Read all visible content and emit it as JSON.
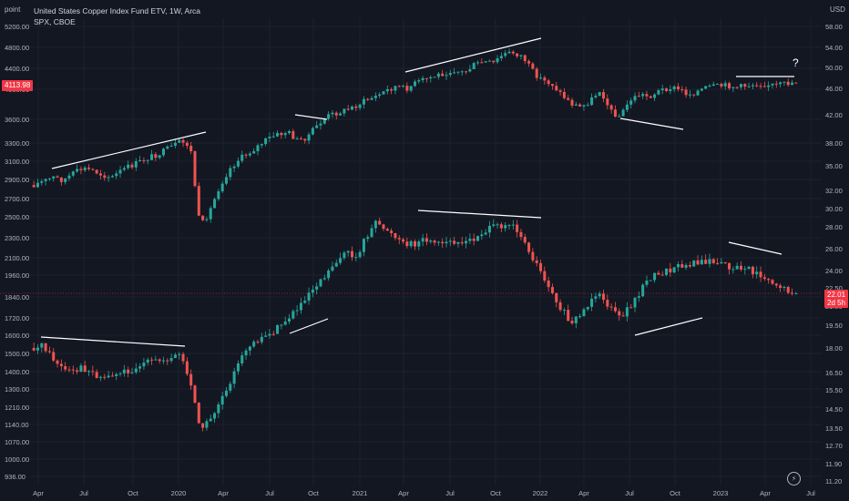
{
  "legend": {
    "line1": "United States Copper Index Fund ETV, 1W, Arca",
    "line2": "SPX, CBOE"
  },
  "axes": {
    "left_unit": "point",
    "right_unit": "USD"
  },
  "tags": {
    "spx_last": "4113.98",
    "cper_last": "22.01",
    "cper_countdown": "2d 5h"
  },
  "annotation": {
    "question_mark": "?"
  },
  "logo": {
    "glyph": "⚡"
  },
  "colors": {
    "background": "#131722",
    "grid": "#1e222d",
    "up": "#26a69a",
    "down": "#ef5350",
    "text": "#b2b5be",
    "price_line": "#f23645",
    "trend": "#ffffff"
  },
  "chart_data": {
    "type": "candlestick",
    "x_ticks": [
      "Apr",
      "Jul",
      "Oct",
      "2020",
      "Apr",
      "Jul",
      "Oct",
      "2021",
      "Apr",
      "Jul",
      "Oct",
      "2022",
      "Apr",
      "Jul",
      "Oct",
      "2023",
      "Apr",
      "Jul"
    ],
    "left_axis_ticks": [
      "5200.00",
      "4800.00",
      "4400.00",
      "4000.00",
      "3600.00",
      "3300.00",
      "3100.00",
      "2900.00",
      "2700.00",
      "2500.00",
      "2300.00",
      "2100.00",
      "1960.00",
      "1840.00",
      "1720.00",
      "1600.00",
      "1500.00",
      "1400.00",
      "1300.00",
      "1210.00",
      "1140.00",
      "1070.00",
      "1000.00",
      "936.00"
    ],
    "right_axis_ticks": [
      "58.00",
      "54.00",
      "50.00",
      "46.00",
      "42.00",
      "38.00",
      "35.00",
      "32.00",
      "30.00",
      "28.00",
      "26.00",
      "24.00",
      "22.50",
      "21.00",
      "19.50",
      "18.00",
      "16.50",
      "15.50",
      "14.50",
      "13.50",
      "12.70",
      "11.90",
      "11.20"
    ],
    "series": [
      {
        "name": "SPX, CBOE",
        "last": 4113.98,
        "scale": "left",
        "close_path": [
          2830,
          2880,
          2950,
          2900,
          2960,
          3020,
          3000,
          2950,
          2980,
          3040,
          3080,
          3120,
          3160,
          3200,
          3260,
          3320,
          3250,
          2500,
          2600,
          2900,
          3100,
          3220,
          3300,
          3400,
          3350,
          3500,
          3450,
          3200,
          3400,
          3600,
          3700,
          3750,
          3800,
          3900,
          3950,
          4020,
          4100,
          4200,
          4150,
          4250,
          4350,
          4400,
          4450,
          4500,
          4450,
          4600,
          4700,
          4650,
          4550,
          4700,
          4550,
          4400,
          4300,
          4500,
          4100,
          3900,
          3700,
          3900,
          4150,
          3700,
          3600,
          3850,
          4000,
          3950,
          4050,
          4100,
          4080,
          4000,
          4100,
          4150,
          4160,
          4180,
          4150,
          4170,
          4200,
          4190,
          4180,
          4210,
          4113.98
        ],
        "high": 4818,
        "low": 2237
      }
    ]
  }
}
